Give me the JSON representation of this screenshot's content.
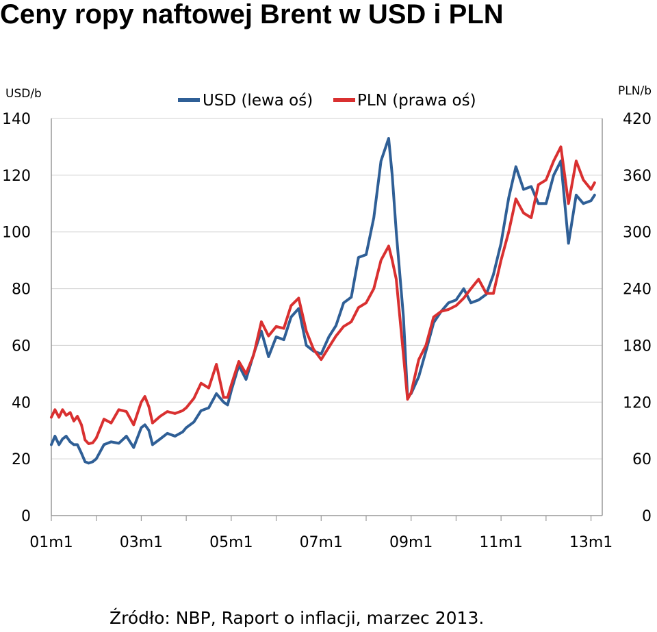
{
  "title": "Ceny ropy naftowej Brent w USD i PLN",
  "source": "Źródło: NBP, Raport o inflacji, marzec 2013.",
  "colors": {
    "usd": "#2f5f96",
    "pln": "#d93030",
    "grid": "#d0d0d0",
    "axis": "#999999"
  },
  "chart_data": {
    "type": "line",
    "title": "Ceny ropy naftowej Brent w USD i PLN",
    "left_axis": {
      "label": "USD/b",
      "ticks": [
        "0",
        "20",
        "40",
        "60",
        "80",
        "100",
        "120",
        "140"
      ],
      "range": [
        0,
        140
      ]
    },
    "right_axis": {
      "label": "PLN/b",
      "ticks": [
        "0",
        "60",
        "120",
        "180",
        "240",
        "300",
        "360",
        "420"
      ],
      "range": [
        0,
        420
      ]
    },
    "x_ticks": [
      "01m1",
      "03m1",
      "05m1",
      "07m1",
      "09m1",
      "11m1",
      "13m1"
    ],
    "x_range": [
      2001.0,
      2013.25
    ],
    "grid": "horizontal",
    "legend_position": "top-center",
    "series": [
      {
        "name": "USD (lewa oś)",
        "axis": "left",
        "x": [
          2001.0,
          2001.08,
          2001.17,
          2001.25,
          2001.33,
          2001.42,
          2001.5,
          2001.58,
          2001.67,
          2001.75,
          2001.83,
          2001.92,
          2002.0,
          2002.17,
          2002.33,
          2002.5,
          2002.67,
          2002.83,
          2003.0,
          2003.08,
          2003.17,
          2003.25,
          2003.42,
          2003.58,
          2003.75,
          2003.92,
          2004.0,
          2004.17,
          2004.33,
          2004.5,
          2004.67,
          2004.83,
          2004.92,
          2005.0,
          2005.17,
          2005.33,
          2005.5,
          2005.67,
          2005.83,
          2006.0,
          2006.17,
          2006.33,
          2006.5,
          2006.67,
          2006.83,
          2007.0,
          2007.17,
          2007.33,
          2007.5,
          2007.67,
          2007.83,
          2008.0,
          2008.17,
          2008.33,
          2008.5,
          2008.58,
          2008.67,
          2008.83,
          2008.92,
          2009.0,
          2009.17,
          2009.33,
          2009.5,
          2009.67,
          2009.83,
          2010.0,
          2010.17,
          2010.33,
          2010.5,
          2010.67,
          2010.83,
          2011.0,
          2011.17,
          2011.33,
          2011.5,
          2011.67,
          2011.83,
          2012.0,
          2012.17,
          2012.33,
          2012.5,
          2012.67,
          2012.83,
          2013.0,
          2013.08
        ],
        "values": [
          25,
          28,
          25,
          27,
          28,
          26,
          25,
          25,
          22,
          19,
          18.5,
          19,
          20,
          25,
          26,
          25.5,
          28,
          24,
          31,
          32,
          30,
          25,
          27,
          29,
          28,
          29.5,
          31,
          33,
          37,
          38,
          43,
          40,
          39,
          44,
          53,
          48,
          57,
          65,
          56,
          63,
          62,
          70,
          73,
          60,
          58,
          57,
          63,
          67,
          75,
          77,
          91,
          92,
          105,
          125,
          133,
          120,
          100,
          70,
          42,
          43,
          49,
          58,
          68,
          72,
          75,
          76,
          80,
          75,
          76,
          78,
          85,
          96,
          112,
          123,
          115,
          116,
          110,
          110,
          120,
          125,
          96,
          113,
          110,
          111,
          113
        ]
      },
      {
        "name": "PLN (prawa oś)",
        "axis": "right",
        "x": [
          2001.0,
          2001.08,
          2001.17,
          2001.25,
          2001.33,
          2001.42,
          2001.5,
          2001.58,
          2001.67,
          2001.75,
          2001.83,
          2001.92,
          2002.0,
          2002.17,
          2002.33,
          2002.5,
          2002.67,
          2002.83,
          2003.0,
          2003.08,
          2003.17,
          2003.25,
          2003.42,
          2003.58,
          2003.75,
          2003.92,
          2004.0,
          2004.17,
          2004.33,
          2004.5,
          2004.67,
          2004.83,
          2004.92,
          2005.0,
          2005.17,
          2005.33,
          2005.5,
          2005.67,
          2005.83,
          2006.0,
          2006.17,
          2006.33,
          2006.5,
          2006.67,
          2006.83,
          2007.0,
          2007.17,
          2007.33,
          2007.5,
          2007.67,
          2007.83,
          2008.0,
          2008.17,
          2008.33,
          2008.5,
          2008.58,
          2008.67,
          2008.83,
          2008.92,
          2009.0,
          2009.17,
          2009.33,
          2009.5,
          2009.67,
          2009.83,
          2010.0,
          2010.17,
          2010.33,
          2010.5,
          2010.67,
          2010.83,
          2011.0,
          2011.17,
          2011.33,
          2011.5,
          2011.67,
          2011.83,
          2012.0,
          2012.17,
          2012.33,
          2012.5,
          2012.67,
          2012.83,
          2013.0,
          2013.08
        ],
        "values": [
          104,
          112,
          104,
          112,
          106,
          109,
          100,
          105,
          96,
          80,
          76,
          77,
          82,
          102,
          98,
          112,
          110,
          96,
          120,
          126,
          115,
          98,
          105,
          110,
          108,
          111,
          114,
          124,
          140,
          135,
          160,
          125,
          125,
          138,
          163,
          150,
          170,
          205,
          190,
          200,
          198,
          222,
          230,
          195,
          176,
          165,
          178,
          190,
          200,
          205,
          220,
          225,
          240,
          270,
          285,
          270,
          250,
          170,
          123,
          130,
          165,
          180,
          210,
          216,
          218,
          222,
          230,
          240,
          250,
          235,
          235,
          270,
          300,
          335,
          320,
          315,
          350,
          355,
          375,
          390,
          330,
          375,
          355,
          345,
          352
        ]
      }
    ]
  }
}
